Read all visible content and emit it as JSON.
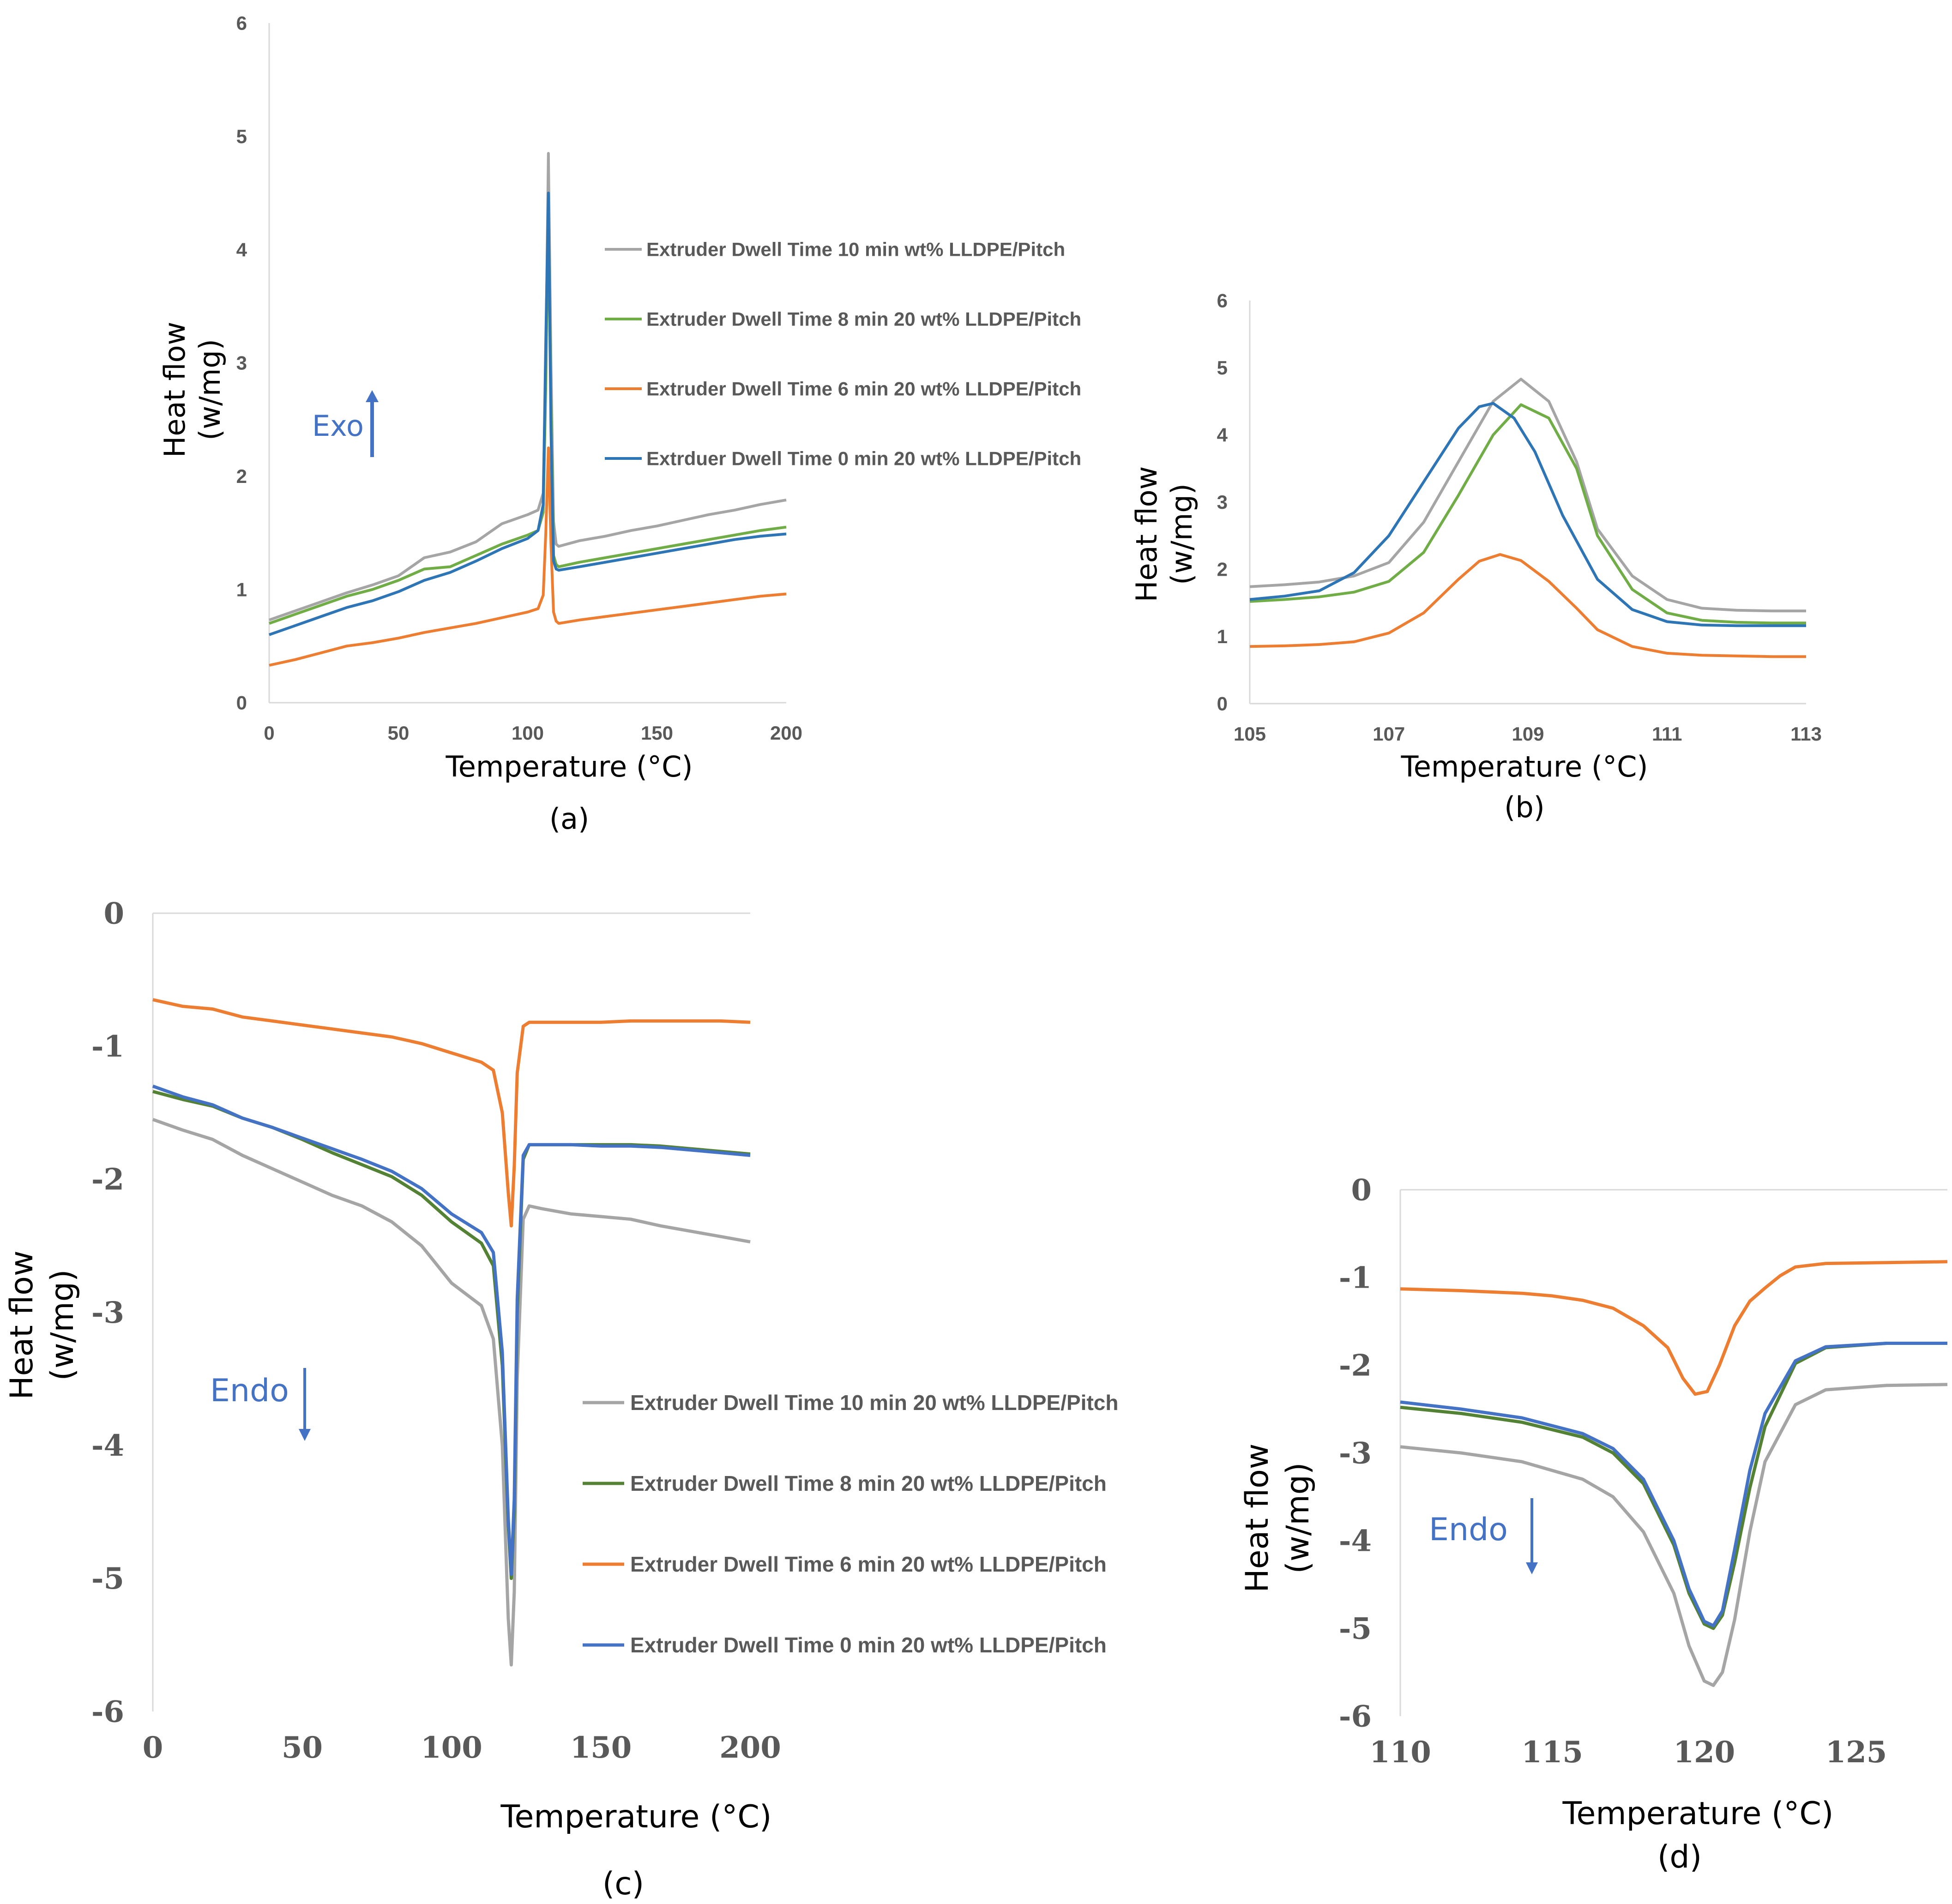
{
  "chart_data": [
    {
      "panel": "(a)",
      "type": "line",
      "xlabel": "Temperature (°C)",
      "ylabel": [
        "Heat flow",
        "(w/mg)"
      ],
      "xlim": [
        0,
        200
      ],
      "ylim": [
        0,
        6
      ],
      "xticks": [
        0,
        50,
        100,
        150,
        200
      ],
      "yticks": [
        0,
        1,
        2,
        3,
        4,
        5,
        6
      ],
      "grid": false,
      "legend_position": "right",
      "annotation": {
        "text": "Exo",
        "arrow": "up",
        "color": "#4472C4"
      },
      "series": [
        {
          "name": "Extruder Dwell Time 10 min wt% LLDPE/Pitch",
          "color": "#A5A5A5",
          "x": [
            0,
            10,
            20,
            30,
            40,
            50,
            60,
            70,
            80,
            90,
            100,
            104,
            106,
            107,
            108,
            109,
            110,
            111,
            112,
            120,
            130,
            140,
            150,
            160,
            170,
            180,
            190,
            200
          ],
          "y": [
            0.73,
            0.81,
            0.89,
            0.97,
            1.04,
            1.12,
            1.28,
            1.33,
            1.42,
            1.58,
            1.66,
            1.7,
            1.85,
            3.0,
            4.85,
            3.0,
            1.6,
            1.4,
            1.38,
            1.43,
            1.47,
            1.52,
            1.56,
            1.61,
            1.66,
            1.7,
            1.75,
            1.79
          ]
        },
        {
          "name": "Extruder Dwell Time 8 min 20 wt% LLDPE/Pitch",
          "color": "#70AD47",
          "x": [
            0,
            10,
            20,
            30,
            40,
            50,
            60,
            70,
            80,
            90,
            100,
            104,
            106,
            107,
            108,
            109,
            110,
            111,
            112,
            120,
            130,
            140,
            150,
            160,
            170,
            180,
            190,
            200
          ],
          "y": [
            0.7,
            0.78,
            0.86,
            0.94,
            1.0,
            1.08,
            1.18,
            1.2,
            1.3,
            1.4,
            1.48,
            1.52,
            1.68,
            2.8,
            4.45,
            2.6,
            1.3,
            1.22,
            1.2,
            1.24,
            1.28,
            1.32,
            1.36,
            1.4,
            1.44,
            1.48,
            1.52,
            1.55
          ]
        },
        {
          "name": "Extruder Dwell Time 6 min 20 wt% LLDPE/Pitch",
          "color": "#ED7D31",
          "x": [
            0,
            10,
            20,
            30,
            40,
            50,
            60,
            70,
            80,
            90,
            100,
            104,
            106,
            107,
            108,
            109,
            110,
            111,
            112,
            120,
            130,
            140,
            150,
            160,
            170,
            180,
            190,
            200
          ],
          "y": [
            0.33,
            0.38,
            0.44,
            0.5,
            0.53,
            0.57,
            0.62,
            0.66,
            0.7,
            0.75,
            0.8,
            0.83,
            0.95,
            1.5,
            2.25,
            1.4,
            0.8,
            0.72,
            0.7,
            0.73,
            0.76,
            0.79,
            0.82,
            0.85,
            0.88,
            0.91,
            0.94,
            0.96
          ]
        },
        {
          "name": "Extrduer Dwell Time 0 min 20 wt% LLDPE/Pitch",
          "color": "#2E75B6",
          "x": [
            0,
            10,
            20,
            30,
            40,
            50,
            60,
            70,
            80,
            90,
            100,
            104,
            106,
            107,
            108,
            109,
            110,
            111,
            112,
            120,
            130,
            140,
            150,
            160,
            170,
            180,
            190,
            200
          ],
          "y": [
            0.6,
            0.68,
            0.76,
            0.84,
            0.9,
            0.98,
            1.08,
            1.15,
            1.25,
            1.36,
            1.45,
            1.52,
            1.75,
            3.2,
            4.5,
            2.4,
            1.25,
            1.18,
            1.17,
            1.2,
            1.24,
            1.28,
            1.32,
            1.36,
            1.4,
            1.44,
            1.47,
            1.49
          ]
        }
      ]
    },
    {
      "panel": "(b)",
      "type": "line",
      "xlabel": "Temperature (°C)",
      "ylabel": [
        "Heat flow",
        "(w/mg)"
      ],
      "xlim": [
        105,
        113
      ],
      "ylim": [
        0,
        6
      ],
      "xticks": [
        105,
        107,
        109,
        111,
        113
      ],
      "yticks": [
        0,
        1,
        2,
        3,
        4,
        5,
        6
      ],
      "grid": false,
      "annotation": {
        "text": "Exo",
        "arrow": "up",
        "color": "#4472C4"
      },
      "series": [
        {
          "color": "#A5A5A5",
          "x": [
            105,
            105.5,
            106,
            106.5,
            107,
            107.5,
            108,
            108.5,
            108.9,
            109.3,
            109.7,
            110,
            110.5,
            111,
            111.5,
            112,
            112.5,
            113
          ],
          "y": [
            1.74,
            1.77,
            1.81,
            1.9,
            2.1,
            2.7,
            3.6,
            4.5,
            4.83,
            4.5,
            3.6,
            2.6,
            1.9,
            1.55,
            1.42,
            1.39,
            1.38,
            1.38
          ]
        },
        {
          "color": "#70AD47",
          "x": [
            105,
            105.5,
            106,
            106.5,
            107,
            107.5,
            108,
            108.5,
            108.9,
            109.3,
            109.7,
            110,
            110.5,
            111,
            111.5,
            112,
            112.5,
            113
          ],
          "y": [
            1.52,
            1.55,
            1.59,
            1.66,
            1.82,
            2.25,
            3.1,
            4.0,
            4.45,
            4.25,
            3.5,
            2.5,
            1.7,
            1.35,
            1.24,
            1.21,
            1.2,
            1.2
          ]
        },
        {
          "color": "#ED7D31",
          "x": [
            105,
            105.5,
            106,
            106.5,
            107,
            107.5,
            108,
            108.3,
            108.6,
            108.9,
            109.3,
            109.7,
            110,
            110.5,
            111,
            111.5,
            112,
            112.5,
            113
          ],
          "y": [
            0.85,
            0.86,
            0.88,
            0.92,
            1.05,
            1.35,
            1.85,
            2.12,
            2.22,
            2.13,
            1.82,
            1.42,
            1.1,
            0.85,
            0.75,
            0.72,
            0.71,
            0.7,
            0.7
          ]
        },
        {
          "color": "#2E75B6",
          "x": [
            105,
            105.5,
            106,
            106.5,
            107,
            107.5,
            108,
            108.3,
            108.5,
            108.8,
            109.1,
            109.5,
            110,
            110.5,
            111,
            111.5,
            112,
            112.5,
            113
          ],
          "y": [
            1.55,
            1.6,
            1.68,
            1.95,
            2.5,
            3.3,
            4.1,
            4.42,
            4.47,
            4.25,
            3.75,
            2.8,
            1.85,
            1.4,
            1.22,
            1.17,
            1.16,
            1.16,
            1.16
          ]
        }
      ]
    },
    {
      "panel": "(c)",
      "type": "line",
      "xlabel": "Temperature (°C)",
      "ylabel": [
        "Heat flow",
        "(w/mg)"
      ],
      "xlim": [
        0,
        200
      ],
      "ylim": [
        -6,
        0
      ],
      "xticks": [
        0,
        50,
        100,
        150,
        200
      ],
      "yticks": [
        0,
        -1,
        -2,
        -3,
        -4,
        -5,
        -6
      ],
      "grid": false,
      "legend_position": "bottom-right",
      "annotation": {
        "text": "Endo",
        "arrow": "down",
        "color": "#4472C4"
      },
      "series": [
        {
          "name": "Extruder Dwell Time 10 min 20 wt% LLDPE/Pitch",
          "color": "#A5A5A5",
          "x": [
            0,
            10,
            20,
            30,
            40,
            50,
            60,
            70,
            80,
            90,
            100,
            110,
            114,
            117,
            119,
            120,
            121,
            122,
            124,
            126,
            130,
            140,
            150,
            160,
            170,
            180,
            190,
            200
          ],
          "y": [
            -1.55,
            -1.63,
            -1.7,
            -1.82,
            -1.92,
            -2.02,
            -2.12,
            -2.2,
            -2.32,
            -2.5,
            -2.78,
            -2.95,
            -3.2,
            -4.0,
            -5.3,
            -5.65,
            -5.1,
            -3.5,
            -2.3,
            -2.2,
            -2.22,
            -2.26,
            -2.28,
            -2.3,
            -2.35,
            -2.39,
            -2.43,
            -2.47
          ]
        },
        {
          "name": "Extruder Dwell  Time 8  min 20 wt% LLDPE/Pitch",
          "color": "#548235",
          "x": [
            0,
            10,
            20,
            30,
            40,
            50,
            60,
            70,
            80,
            90,
            100,
            110,
            114,
            117,
            119,
            120,
            121,
            122,
            124,
            126,
            130,
            140,
            150,
            160,
            170,
            180,
            190,
            200
          ],
          "y": [
            -1.34,
            -1.4,
            -1.45,
            -1.54,
            -1.61,
            -1.7,
            -1.8,
            -1.89,
            -1.98,
            -2.12,
            -2.32,
            -2.48,
            -2.65,
            -3.4,
            -4.6,
            -5.0,
            -4.5,
            -3.0,
            -1.85,
            -1.74,
            -1.74,
            -1.74,
            -1.74,
            -1.74,
            -1.75,
            -1.77,
            -1.79,
            -1.81
          ]
        },
        {
          "name": "Extruder Dwell Time 6 min 20 wt% LLDPE/Pitch",
          "color": "#ED7D31",
          "x": [
            0,
            10,
            20,
            30,
            40,
            50,
            60,
            70,
            80,
            90,
            100,
            110,
            114,
            117,
            119,
            120,
            121,
            122,
            124,
            126,
            130,
            140,
            150,
            160,
            170,
            180,
            190,
            200
          ],
          "y": [
            -0.65,
            -0.7,
            -0.72,
            -0.78,
            -0.81,
            -0.84,
            -0.87,
            -0.9,
            -0.93,
            -0.98,
            -1.05,
            -1.12,
            -1.18,
            -1.5,
            -2.1,
            -2.35,
            -1.9,
            -1.2,
            -0.85,
            -0.82,
            -0.82,
            -0.82,
            -0.82,
            -0.81,
            -0.81,
            -0.81,
            -0.81,
            -0.82
          ]
        },
        {
          "name": "Extruder Dwell Time 0 min 20 wt% LLDPE/Pitch",
          "color": "#4472C4",
          "x": [
            0,
            10,
            20,
            30,
            40,
            50,
            60,
            70,
            80,
            90,
            100,
            110,
            114,
            117,
            119,
            120,
            121,
            122,
            124,
            126,
            130,
            140,
            150,
            160,
            170,
            180,
            190,
            200
          ],
          "y": [
            -1.3,
            -1.38,
            -1.44,
            -1.54,
            -1.61,
            -1.69,
            -1.77,
            -1.85,
            -1.94,
            -2.07,
            -2.26,
            -2.4,
            -2.55,
            -3.3,
            -4.55,
            -4.97,
            -4.4,
            -2.9,
            -1.82,
            -1.74,
            -1.74,
            -1.74,
            -1.75,
            -1.75,
            -1.76,
            -1.78,
            -1.8,
            -1.82
          ]
        }
      ]
    },
    {
      "panel": "(d)",
      "type": "line",
      "xlabel": "Temperature (°C)",
      "ylabel": [
        "Heat flow",
        "(w/mg)"
      ],
      "xlim": [
        110,
        128
      ],
      "ylim": [
        -6,
        0
      ],
      "xticks": [
        110,
        115,
        120,
        125
      ],
      "yticks": [
        0,
        -1,
        -2,
        -3,
        -4,
        -5,
        -6
      ],
      "grid": false,
      "annotation": {
        "text": "Endo",
        "arrow": "down",
        "color": "#4472C4"
      },
      "series": [
        {
          "color": "#A5A5A5",
          "x": [
            110,
            112,
            114,
            116,
            117,
            118,
            119,
            119.5,
            120,
            120.3,
            120.6,
            121,
            121.5,
            122,
            123,
            124,
            126,
            128
          ],
          "y": [
            -2.93,
            -3.0,
            -3.1,
            -3.3,
            -3.5,
            -3.9,
            -4.6,
            -5.2,
            -5.6,
            -5.65,
            -5.5,
            -4.9,
            -3.9,
            -3.1,
            -2.45,
            -2.28,
            -2.23,
            -2.22
          ]
        },
        {
          "color": "#548235",
          "x": [
            110,
            112,
            114,
            116,
            117,
            118,
            119,
            119.5,
            120,
            120.3,
            120.6,
            121,
            121.5,
            122,
            123,
            124,
            126,
            128
          ],
          "y": [
            -2.48,
            -2.55,
            -2.65,
            -2.82,
            -3.0,
            -3.35,
            -4.05,
            -4.6,
            -4.95,
            -5.0,
            -4.85,
            -4.25,
            -3.4,
            -2.7,
            -1.98,
            -1.8,
            -1.75,
            -1.75
          ]
        },
        {
          "color": "#ED7D31",
          "x": [
            110,
            112,
            114,
            115,
            116,
            117,
            118,
            118.8,
            119.3,
            119.7,
            120.1,
            120.5,
            121,
            121.5,
            122,
            122.5,
            123,
            124,
            126,
            128
          ],
          "y": [
            -1.13,
            -1.15,
            -1.18,
            -1.21,
            -1.26,
            -1.35,
            -1.55,
            -1.8,
            -2.15,
            -2.33,
            -2.3,
            -2.0,
            -1.55,
            -1.27,
            -1.12,
            -0.98,
            -0.88,
            -0.84,
            -0.83,
            -0.82
          ]
        },
        {
          "color": "#4472C4",
          "x": [
            110,
            112,
            114,
            116,
            117,
            118,
            119,
            119.5,
            120,
            120.3,
            120.6,
            121,
            121.5,
            122,
            123,
            124,
            126,
            128
          ],
          "y": [
            -2.42,
            -2.5,
            -2.6,
            -2.78,
            -2.95,
            -3.3,
            -4.0,
            -4.55,
            -4.92,
            -4.97,
            -4.8,
            -4.1,
            -3.2,
            -2.55,
            -1.95,
            -1.79,
            -1.75,
            -1.75
          ]
        }
      ]
    }
  ]
}
